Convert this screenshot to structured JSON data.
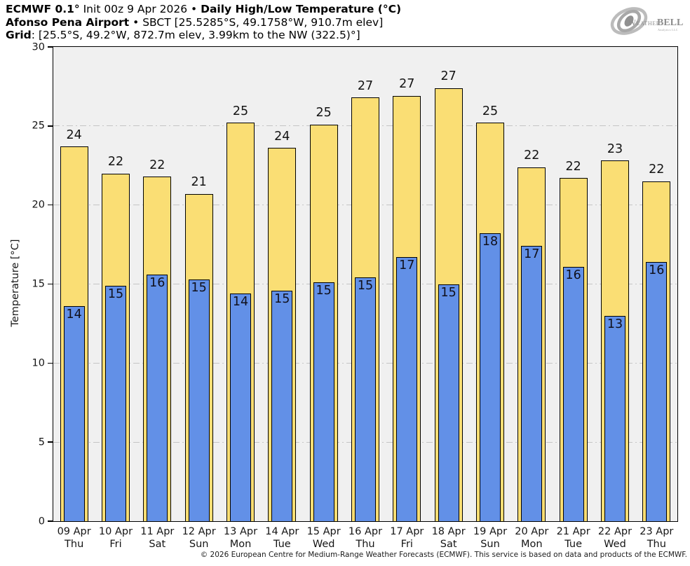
{
  "title": {
    "model_bold": "ECMWF 0.1°",
    "init_text": " Init 00z 9 Apr 2026 • ",
    "product_bold": "Daily High/Low Temperature (°C)",
    "station_bold": "Afonso Pena Airport",
    "station_rest": " • SBCT [25.5285°S, 49.1758°W, 910.7m elev]",
    "grid_bold": "Grid",
    "grid_rest": ": [25.5°S, 49.2°W, 872.7m elev, 3.99km to the NW (322.5)°]"
  },
  "logo": {
    "weather": "Weather",
    "bell": "BELL",
    "subtitle": "Analytics LLC"
  },
  "colors": {
    "high_bar": "#FADE74",
    "low_bar": "#6290E7",
    "plot_bg": "#F0F0F0",
    "gridline": "#C5C5C5"
  },
  "chart_data": {
    "type": "bar",
    "title": "ECMWF 0.1° Init 00z 9 Apr 2026 • Daily High/Low Temperature (°C)",
    "xlabel": "",
    "ylabel": "Temperature [°C]",
    "ylim": [
      0,
      30
    ],
    "yticks": [
      0,
      5,
      10,
      15,
      20,
      25,
      30
    ],
    "grid": true,
    "legend_position": "none",
    "categories": [
      {
        "date": "09 Apr",
        "weekday": "Thu"
      },
      {
        "date": "10 Apr",
        "weekday": "Fri"
      },
      {
        "date": "11 Apr",
        "weekday": "Sat"
      },
      {
        "date": "12 Apr",
        "weekday": "Sun"
      },
      {
        "date": "13 Apr",
        "weekday": "Mon"
      },
      {
        "date": "14 Apr",
        "weekday": "Tue"
      },
      {
        "date": "15 Apr",
        "weekday": "Wed"
      },
      {
        "date": "16 Apr",
        "weekday": "Thu"
      },
      {
        "date": "17 Apr",
        "weekday": "Fri"
      },
      {
        "date": "18 Apr",
        "weekday": "Sat"
      },
      {
        "date": "19 Apr",
        "weekday": "Sun"
      },
      {
        "date": "20 Apr",
        "weekday": "Mon"
      },
      {
        "date": "21 Apr",
        "weekday": "Tue"
      },
      {
        "date": "22 Apr",
        "weekday": "Wed"
      },
      {
        "date": "23 Apr",
        "weekday": "Thu"
      }
    ],
    "series": [
      {
        "name": "Daily High",
        "values": [
          23.7,
          22.0,
          21.8,
          20.7,
          25.2,
          23.6,
          25.1,
          26.8,
          26.9,
          27.4,
          25.2,
          22.4,
          21.7,
          22.8,
          21.5
        ],
        "labels": [
          "24",
          "22",
          "22",
          "21",
          "25",
          "24",
          "25",
          "27",
          "27",
          "27",
          "25",
          "22",
          "22",
          "23",
          "22"
        ]
      },
      {
        "name": "Daily Low",
        "values": [
          13.6,
          14.9,
          15.6,
          15.3,
          14.4,
          14.6,
          15.1,
          15.4,
          16.7,
          15.0,
          18.2,
          17.4,
          16.1,
          13.0,
          16.4
        ],
        "labels": [
          "14",
          "15",
          "16",
          "15",
          "14",
          "15",
          "15",
          "15",
          "17",
          "15",
          "18",
          "17",
          "16",
          "13",
          "16"
        ]
      }
    ]
  },
  "footer": {
    "copyright": "© 2026 European Centre for Medium-Range Weather Forecasts (ECMWF). This service is based on data and products of the ECMWF."
  }
}
